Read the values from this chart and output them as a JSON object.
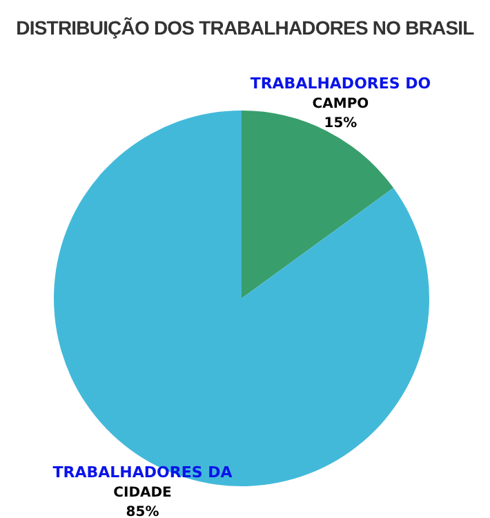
{
  "chart_data": {
    "type": "pie",
    "title": "DISTRIBUIÇÃO DOS TRABALHADORES NO BRASIL",
    "categories": [
      "TRABALHADORES DO CAMPO",
      "TRABALHADORES DA CIDADE"
    ],
    "values": [
      15,
      85
    ],
    "value_labels": [
      "15%",
      "85%"
    ],
    "colors": [
      "#389e6c",
      "#43b9d9"
    ]
  }
}
